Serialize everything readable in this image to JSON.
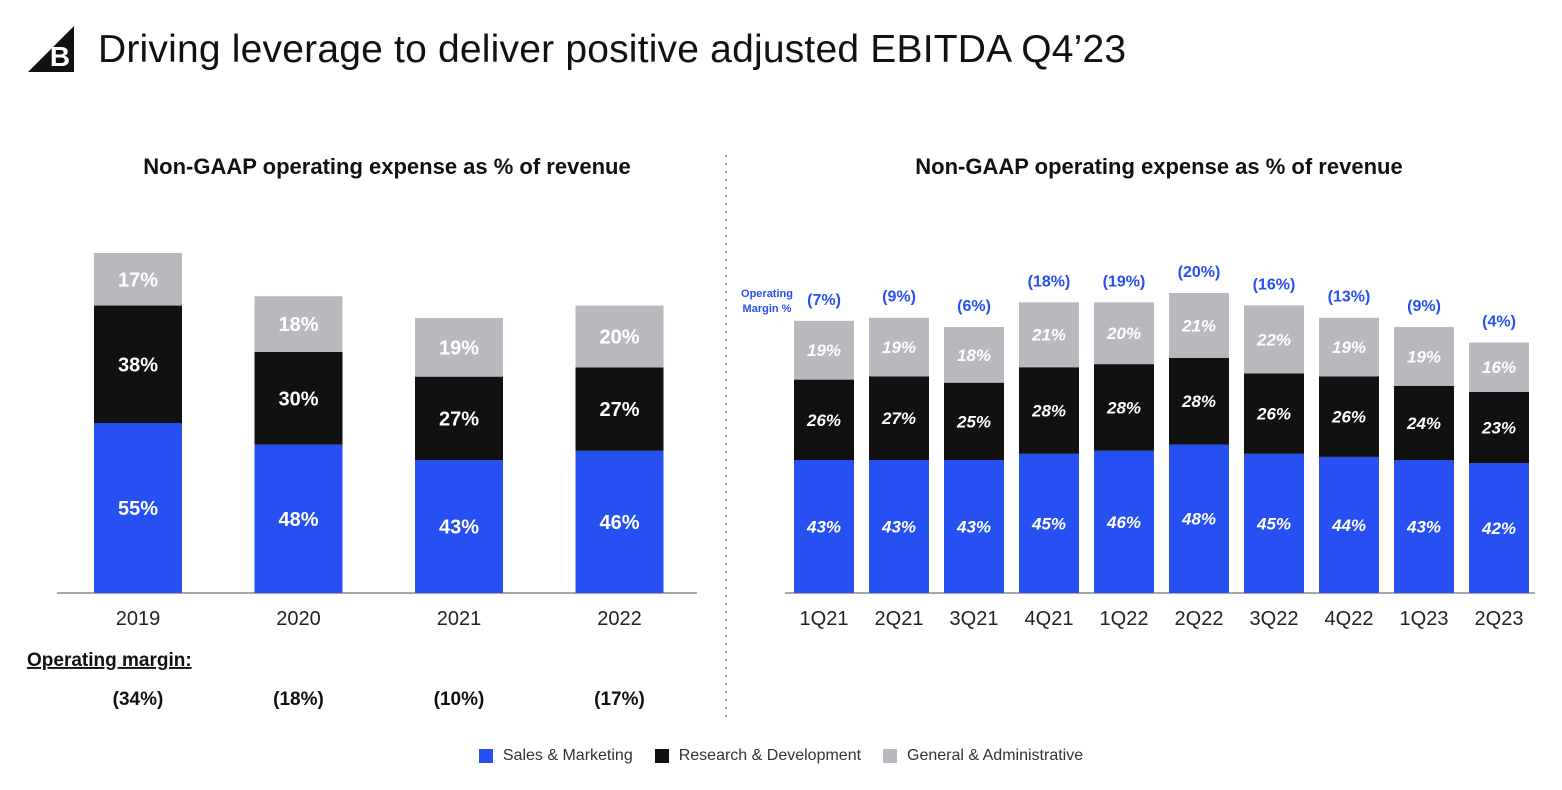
{
  "header": {
    "title": "Driving leverage to deliver positive adjusted EBITDA Q4’23",
    "logo_letter": "B"
  },
  "colors": {
    "sales": "#2650f2",
    "rnd": "#111111",
    "ga": "#b8b9be",
    "margin_text": "#2650f2"
  },
  "legend": [
    {
      "label": "Sales & Marketing",
      "color": "#2650f2"
    },
    {
      "label": "Research & Development",
      "color": "#111111"
    },
    {
      "label": "General & Administrative",
      "color": "#b8b9be"
    }
  ],
  "chart_data": [
    {
      "type": "bar",
      "stacked": true,
      "title": "Non-GAAP operating expense as % of revenue",
      "categories": [
        "2019",
        "2020",
        "2021",
        "2022"
      ],
      "series": [
        {
          "name": "Sales & Marketing",
          "values": [
            55,
            48,
            43,
            46
          ],
          "labels": [
            "55%",
            "48%",
            "43%",
            "46%"
          ]
        },
        {
          "name": "Research & Development",
          "values": [
            38,
            30,
            27,
            27
          ],
          "labels": [
            "38%",
            "30%",
            "27%",
            "27%"
          ]
        },
        {
          "name": "General & Administrative",
          "values": [
            17,
            18,
            19,
            20
          ],
          "labels": [
            "17%",
            "18%",
            "19%",
            "20%"
          ]
        }
      ],
      "operating_margin_label": "Operating margin:",
      "operating_margin": [
        "(34%)",
        "(18%)",
        "(10%)",
        "(17%)"
      ]
    },
    {
      "type": "bar",
      "stacked": true,
      "title": "Non-GAAP operating expense as % of revenue",
      "categories": [
        "1Q21",
        "2Q21",
        "3Q21",
        "4Q21",
        "1Q22",
        "2Q22",
        "3Q22",
        "4Q22",
        "1Q23",
        "2Q23"
      ],
      "series": [
        {
          "name": "Sales & Marketing",
          "values": [
            43,
            43,
            43,
            45,
            46,
            48,
            45,
            44,
            43,
            42
          ],
          "labels": [
            "43%",
            "43%",
            "43%",
            "45%",
            "46%",
            "48%",
            "45%",
            "44%",
            "43%",
            "42%"
          ]
        },
        {
          "name": "Research & Development",
          "values": [
            26,
            27,
            25,
            28,
            28,
            28,
            26,
            26,
            24,
            23
          ],
          "labels": [
            "26%",
            "27%",
            "25%",
            "28%",
            "28%",
            "28%",
            "26%",
            "26%",
            "24%",
            "23%"
          ]
        },
        {
          "name": "General & Administrative",
          "values": [
            19,
            19,
            18,
            21,
            20,
            21,
            22,
            19,
            19,
            16
          ],
          "labels": [
            "19%",
            "19%",
            "18%",
            "21%",
            "20%",
            "21%",
            "22%",
            "19%",
            "19%",
            "16%"
          ]
        }
      ],
      "operating_margin_label": [
        "Operating",
        "Margin %"
      ],
      "operating_margin": [
        "(7%)",
        "(9%)",
        "(6%)",
        "(18%)",
        "(19%)",
        "(20%)",
        "(16%)",
        "(13%)",
        "(9%)",
        "(4%)"
      ]
    }
  ]
}
